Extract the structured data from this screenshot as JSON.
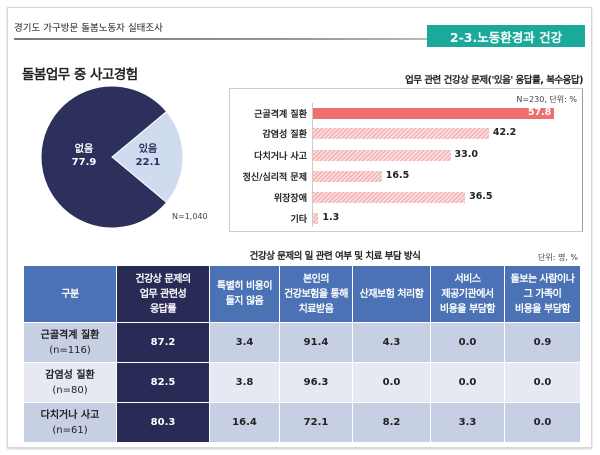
{
  "header": {
    "title": "경기도 가구방문 돌봄노동자 실태조사",
    "section": "2-3.노동환경과 건강"
  },
  "pie": {
    "subtitle": "돌봄업무 중 사고경험",
    "n": "N=1,040",
    "slices": [
      {
        "label": "있음",
        "value": 22.1,
        "value_text": "22.1",
        "color": "#cfdbef"
      },
      {
        "label": "없음",
        "value": 77.9,
        "value_text": "77.9",
        "color": "#2d2f5c"
      }
    ]
  },
  "chart_data": {
    "type": "bar",
    "title": "업무 관련 건강상 문제('있음' 응답률, 복수응답)",
    "note": "N=230, 단위: %",
    "categories": [
      "근골격계 질환",
      "감염성 질환",
      "다치거나 사고",
      "정신/심리적 문제",
      "위장장애",
      "기타"
    ],
    "values": [
      57.8,
      42.2,
      33.0,
      16.5,
      36.5,
      1.3
    ],
    "value_labels": [
      "57.8",
      "42.2",
      "33.0",
      "16.5",
      "36.5",
      "1.3"
    ],
    "highlight_color": "#ef6f6f",
    "bar_color": "#f4b4b4",
    "orientation": "horizontal"
  },
  "table": {
    "title": "건강상 문제의 일 관련 여부 및 치료 부담 방식",
    "unit": "단위: 명, %",
    "headers": [
      "구분",
      "건강상 문제의\n업무 관련성\n응답률",
      "특별히 비용이\n들지 않음",
      "본인의\n건강보험을 통해\n치료받음",
      "산재보험 처리함",
      "서비스\n제공기관에서\n비용을 부담함",
      "돌보는 사람이나\n그 가족이\n비용을 부담함"
    ],
    "rows": [
      {
        "label": "근골격계 질환",
        "n": "(n=116)",
        "cells": [
          "87.2",
          "3.4",
          "91.4",
          "4.3",
          "0.0",
          "0.9"
        ]
      },
      {
        "label": "감염성 질환",
        "n": "(n=80)",
        "cells": [
          "82.5",
          "3.8",
          "96.3",
          "0.0",
          "0.0",
          "0.0"
        ]
      },
      {
        "label": "다치거나 사고",
        "n": "(n=61)",
        "cells": [
          "80.3",
          "16.4",
          "72.1",
          "8.2",
          "3.3",
          "0.0"
        ]
      }
    ]
  }
}
